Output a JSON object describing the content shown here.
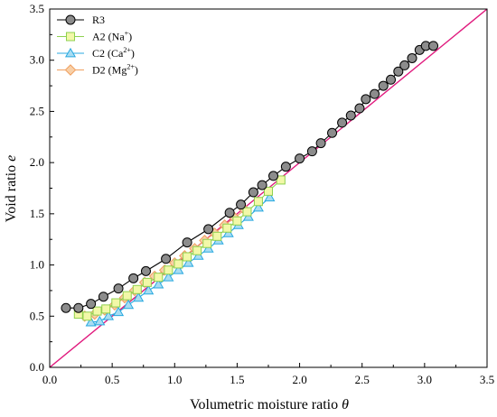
{
  "chart_data": {
    "type": "scatter",
    "xlabel": "Volumetric moisture  ratio",
    "xlabel_symbol": "θ",
    "ylabel": "Void ratio",
    "ylabel_symbol": "e",
    "xlim": [
      0.0,
      3.5
    ],
    "ylim": [
      0.0,
      3.5
    ],
    "xticks": [
      "0.0",
      "0.5",
      "1.0",
      "1.5",
      "2.0",
      "2.5",
      "3.0",
      "3.5"
    ],
    "yticks": [
      "0.0",
      "0.5",
      "1.0",
      "1.5",
      "2.0",
      "2.5",
      "3.0",
      "3.5"
    ],
    "grid": false,
    "legend_position": "top-left",
    "reference_line": {
      "type": "y = x",
      "color": "#e0197d"
    },
    "series": [
      {
        "name": "R3",
        "name_sup": "",
        "name_suffix": "",
        "marker": "circle",
        "stroke": "#000000",
        "fill": "#8c8c8c",
        "line": "#000000",
        "x": [
          0.13,
          0.23,
          0.33,
          0.43,
          0.55,
          0.67,
          0.77,
          0.93,
          1.1,
          1.27,
          1.44,
          1.53,
          1.63,
          1.7,
          1.79,
          1.89,
          2.0,
          2.1,
          2.17,
          2.26,
          2.34,
          2.41,
          2.48,
          2.53,
          2.6,
          2.67,
          2.73,
          2.79,
          2.84,
          2.9,
          2.96,
          3.01,
          3.07
        ],
        "y": [
          0.58,
          0.58,
          0.62,
          0.69,
          0.77,
          0.87,
          0.94,
          1.06,
          1.22,
          1.35,
          1.51,
          1.59,
          1.71,
          1.78,
          1.87,
          1.96,
          2.04,
          2.11,
          2.19,
          2.29,
          2.39,
          2.46,
          2.53,
          2.62,
          2.67,
          2.75,
          2.81,
          2.89,
          2.95,
          3.02,
          3.1,
          3.14,
          3.14
        ]
      },
      {
        "name": "A2 (Na",
        "name_sup": "+",
        "name_suffix": ")",
        "marker": "square",
        "stroke": "#8fd14f",
        "fill": "#f2f8a8",
        "line": "#8fd14f",
        "x": [
          0.23,
          0.3,
          0.38,
          0.45,
          0.53,
          0.62,
          0.7,
          0.78,
          0.87,
          0.95,
          1.03,
          1.1,
          1.18,
          1.26,
          1.34,
          1.42,
          1.5,
          1.58,
          1.67,
          1.75,
          1.85
        ],
        "y": [
          0.52,
          0.5,
          0.55,
          0.57,
          0.63,
          0.7,
          0.76,
          0.83,
          0.88,
          0.95,
          1.01,
          1.08,
          1.14,
          1.21,
          1.28,
          1.36,
          1.43,
          1.52,
          1.62,
          1.72,
          1.83
        ]
      },
      {
        "name": "C2 (Ca",
        "name_sup": "2+",
        "name_suffix": ")",
        "marker": "triangle",
        "stroke": "#29a9e0",
        "fill": "#a8dcf2",
        "line": "#29a9e0",
        "x": [
          0.33,
          0.4,
          0.47,
          0.55,
          0.63,
          0.71,
          0.79,
          0.87,
          0.95,
          1.03,
          1.11,
          1.19,
          1.27,
          1.35,
          1.43,
          1.51,
          1.59,
          1.67,
          1.76
        ],
        "y": [
          0.44,
          0.45,
          0.5,
          0.54,
          0.61,
          0.68,
          0.75,
          0.81,
          0.88,
          0.95,
          1.02,
          1.09,
          1.16,
          1.24,
          1.31,
          1.39,
          1.47,
          1.56,
          1.66
        ]
      },
      {
        "name": "D2 (Mg",
        "name_sup": "2+",
        "name_suffix": ")",
        "marker": "diamond",
        "stroke": "#f0a060",
        "fill": "#f8d0a8",
        "line": "#f0a060",
        "x": [
          0.28,
          0.36,
          0.44,
          0.52,
          0.6,
          0.68,
          0.76,
          0.84,
          0.92,
          1.0,
          1.08,
          1.16,
          1.24,
          1.32,
          1.4,
          1.48,
          1.56
        ],
        "y": [
          0.5,
          0.52,
          0.56,
          0.61,
          0.68,
          0.75,
          0.83,
          0.89,
          0.95,
          1.02,
          1.09,
          1.16,
          1.24,
          1.31,
          1.39,
          1.46,
          1.54
        ]
      }
    ]
  }
}
